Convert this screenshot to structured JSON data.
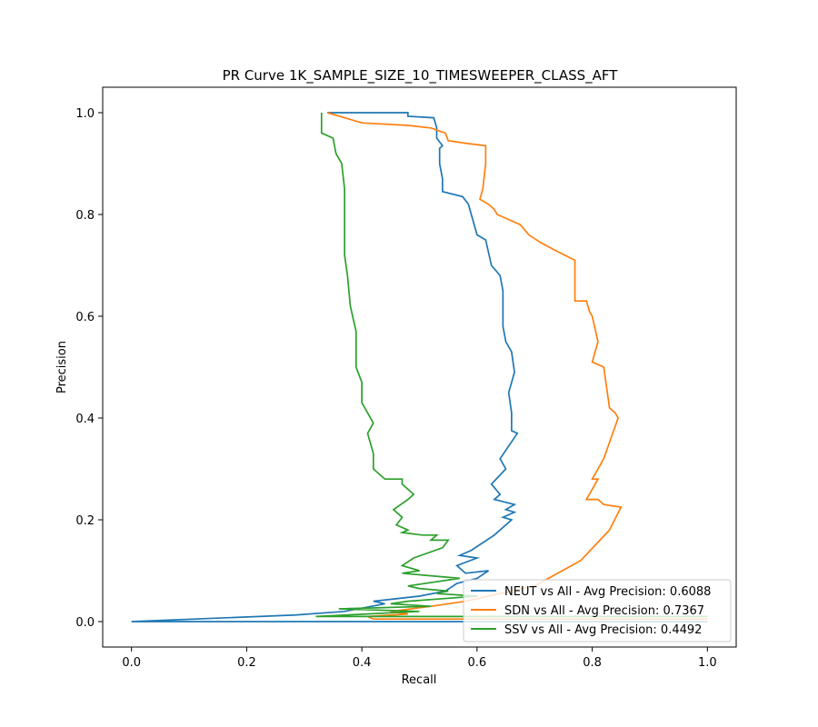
{
  "chart_data": {
    "type": "line",
    "title": "PR Curve 1K_SAMPLE_SIZE_10_TIMESWEEPER_CLASS_AFT",
    "xlabel": "Recall",
    "ylabel": "Precision",
    "xlim": [
      -0.05,
      1.05
    ],
    "ylim": [
      -0.05,
      1.05
    ],
    "xticks": [
      "0.0",
      "0.2",
      "0.4",
      "0.6",
      "0.8",
      "1.0"
    ],
    "yticks": [
      "0.0",
      "0.2",
      "0.4",
      "0.6",
      "0.8",
      "1.0"
    ],
    "grid": false,
    "legend_position": "lower-right",
    "series": [
      {
        "name": "NEUT vs All - Avg Precision: 0.6088",
        "color": "#1f77b4",
        "points": [
          [
            1.0,
            0.0
          ],
          [
            0.0,
            0.0
          ],
          [
            0.285,
            0.013
          ],
          [
            0.37,
            0.02
          ],
          [
            0.44,
            0.035
          ],
          [
            0.42,
            0.04
          ],
          [
            0.5,
            0.05
          ],
          [
            0.545,
            0.06
          ],
          [
            0.565,
            0.075
          ],
          [
            0.6,
            0.085
          ],
          [
            0.62,
            0.1
          ],
          [
            0.58,
            0.095
          ],
          [
            0.565,
            0.11
          ],
          [
            0.6,
            0.125
          ],
          [
            0.57,
            0.13
          ],
          [
            0.59,
            0.14
          ],
          [
            0.63,
            0.17
          ],
          [
            0.66,
            0.2
          ],
          [
            0.645,
            0.205
          ],
          [
            0.665,
            0.215
          ],
          [
            0.65,
            0.22
          ],
          [
            0.665,
            0.23
          ],
          [
            0.63,
            0.24
          ],
          [
            0.64,
            0.25
          ],
          [
            0.625,
            0.27
          ],
          [
            0.65,
            0.3
          ],
          [
            0.64,
            0.32
          ],
          [
            0.67,
            0.37
          ],
          [
            0.66,
            0.375
          ],
          [
            0.66,
            0.41
          ],
          [
            0.655,
            0.45
          ],
          [
            0.665,
            0.49
          ],
          [
            0.66,
            0.53
          ],
          [
            0.65,
            0.55
          ],
          [
            0.645,
            0.58
          ],
          [
            0.645,
            0.65
          ],
          [
            0.64,
            0.68
          ],
          [
            0.625,
            0.7
          ],
          [
            0.615,
            0.75
          ],
          [
            0.6,
            0.76
          ],
          [
            0.59,
            0.8
          ],
          [
            0.585,
            0.82
          ],
          [
            0.575,
            0.835
          ],
          [
            0.54,
            0.845
          ],
          [
            0.54,
            0.87
          ],
          [
            0.535,
            0.9
          ],
          [
            0.535,
            0.93
          ],
          [
            0.54,
            0.935
          ],
          [
            0.53,
            0.95
          ],
          [
            0.53,
            0.97
          ],
          [
            0.525,
            0.99
          ],
          [
            0.48,
            0.993
          ],
          [
            0.48,
            1.0
          ],
          [
            0.34,
            1.0
          ]
        ]
      },
      {
        "name": "SDN vs All - Avg Precision: 0.7367",
        "color": "#ff7f0e",
        "points": [
          [
            1.0,
            0.005
          ],
          [
            0.42,
            0.005
          ],
          [
            0.41,
            0.01
          ],
          [
            0.48,
            0.015
          ],
          [
            0.45,
            0.02
          ],
          [
            0.52,
            0.03
          ],
          [
            0.58,
            0.04
          ],
          [
            0.7,
            0.07
          ],
          [
            0.78,
            0.12
          ],
          [
            0.83,
            0.18
          ],
          [
            0.85,
            0.225
          ],
          [
            0.82,
            0.23
          ],
          [
            0.81,
            0.24
          ],
          [
            0.79,
            0.24
          ],
          [
            0.81,
            0.28
          ],
          [
            0.8,
            0.28
          ],
          [
            0.82,
            0.32
          ],
          [
            0.845,
            0.4
          ],
          [
            0.84,
            0.41
          ],
          [
            0.83,
            0.42
          ],
          [
            0.82,
            0.5
          ],
          [
            0.8,
            0.51
          ],
          [
            0.81,
            0.55
          ],
          [
            0.8,
            0.6
          ],
          [
            0.795,
            0.61
          ],
          [
            0.79,
            0.63
          ],
          [
            0.77,
            0.63
          ],
          [
            0.77,
            0.68
          ],
          [
            0.77,
            0.71
          ],
          [
            0.735,
            0.73
          ],
          [
            0.71,
            0.745
          ],
          [
            0.69,
            0.76
          ],
          [
            0.675,
            0.78
          ],
          [
            0.655,
            0.79
          ],
          [
            0.635,
            0.8
          ],
          [
            0.63,
            0.81
          ],
          [
            0.62,
            0.82
          ],
          [
            0.605,
            0.83
          ],
          [
            0.61,
            0.85
          ],
          [
            0.615,
            0.9
          ],
          [
            0.615,
            0.935
          ],
          [
            0.58,
            0.94
          ],
          [
            0.55,
            0.945
          ],
          [
            0.545,
            0.96
          ],
          [
            0.52,
            0.97
          ],
          [
            0.48,
            0.975
          ],
          [
            0.4,
            0.98
          ],
          [
            0.37,
            0.99
          ],
          [
            0.34,
            1.0
          ]
        ]
      },
      {
        "name": "SSV vs All - Avg Precision: 0.4492",
        "color": "#2ca02c",
        "points": [
          [
            1.0,
            0.01
          ],
          [
            0.32,
            0.01
          ],
          [
            0.5,
            0.02
          ],
          [
            0.36,
            0.025
          ],
          [
            0.52,
            0.03
          ],
          [
            0.45,
            0.035
          ],
          [
            0.48,
            0.04
          ],
          [
            0.6,
            0.05
          ],
          [
            0.53,
            0.055
          ],
          [
            0.55,
            0.06
          ],
          [
            0.5,
            0.065
          ],
          [
            0.48,
            0.07
          ],
          [
            0.57,
            0.085
          ],
          [
            0.52,
            0.09
          ],
          [
            0.47,
            0.095
          ],
          [
            0.5,
            0.1
          ],
          [
            0.47,
            0.11
          ],
          [
            0.49,
            0.125
          ],
          [
            0.54,
            0.145
          ],
          [
            0.55,
            0.16
          ],
          [
            0.52,
            0.16
          ],
          [
            0.53,
            0.17
          ],
          [
            0.505,
            0.17
          ],
          [
            0.47,
            0.175
          ],
          [
            0.48,
            0.18
          ],
          [
            0.46,
            0.19
          ],
          [
            0.47,
            0.205
          ],
          [
            0.455,
            0.22
          ],
          [
            0.48,
            0.24
          ],
          [
            0.49,
            0.25
          ],
          [
            0.47,
            0.27
          ],
          [
            0.47,
            0.28
          ],
          [
            0.44,
            0.28
          ],
          [
            0.42,
            0.3
          ],
          [
            0.42,
            0.33
          ],
          [
            0.41,
            0.37
          ],
          [
            0.42,
            0.39
          ],
          [
            0.4,
            0.43
          ],
          [
            0.4,
            0.47
          ],
          [
            0.39,
            0.5
          ],
          [
            0.39,
            0.57
          ],
          [
            0.38,
            0.62
          ],
          [
            0.375,
            0.68
          ],
          [
            0.37,
            0.72
          ],
          [
            0.37,
            0.79
          ],
          [
            0.37,
            0.85
          ],
          [
            0.365,
            0.9
          ],
          [
            0.355,
            0.92
          ],
          [
            0.35,
            0.95
          ],
          [
            0.33,
            0.96
          ],
          [
            0.33,
            0.98
          ],
          [
            0.33,
            1.0
          ]
        ]
      }
    ]
  }
}
